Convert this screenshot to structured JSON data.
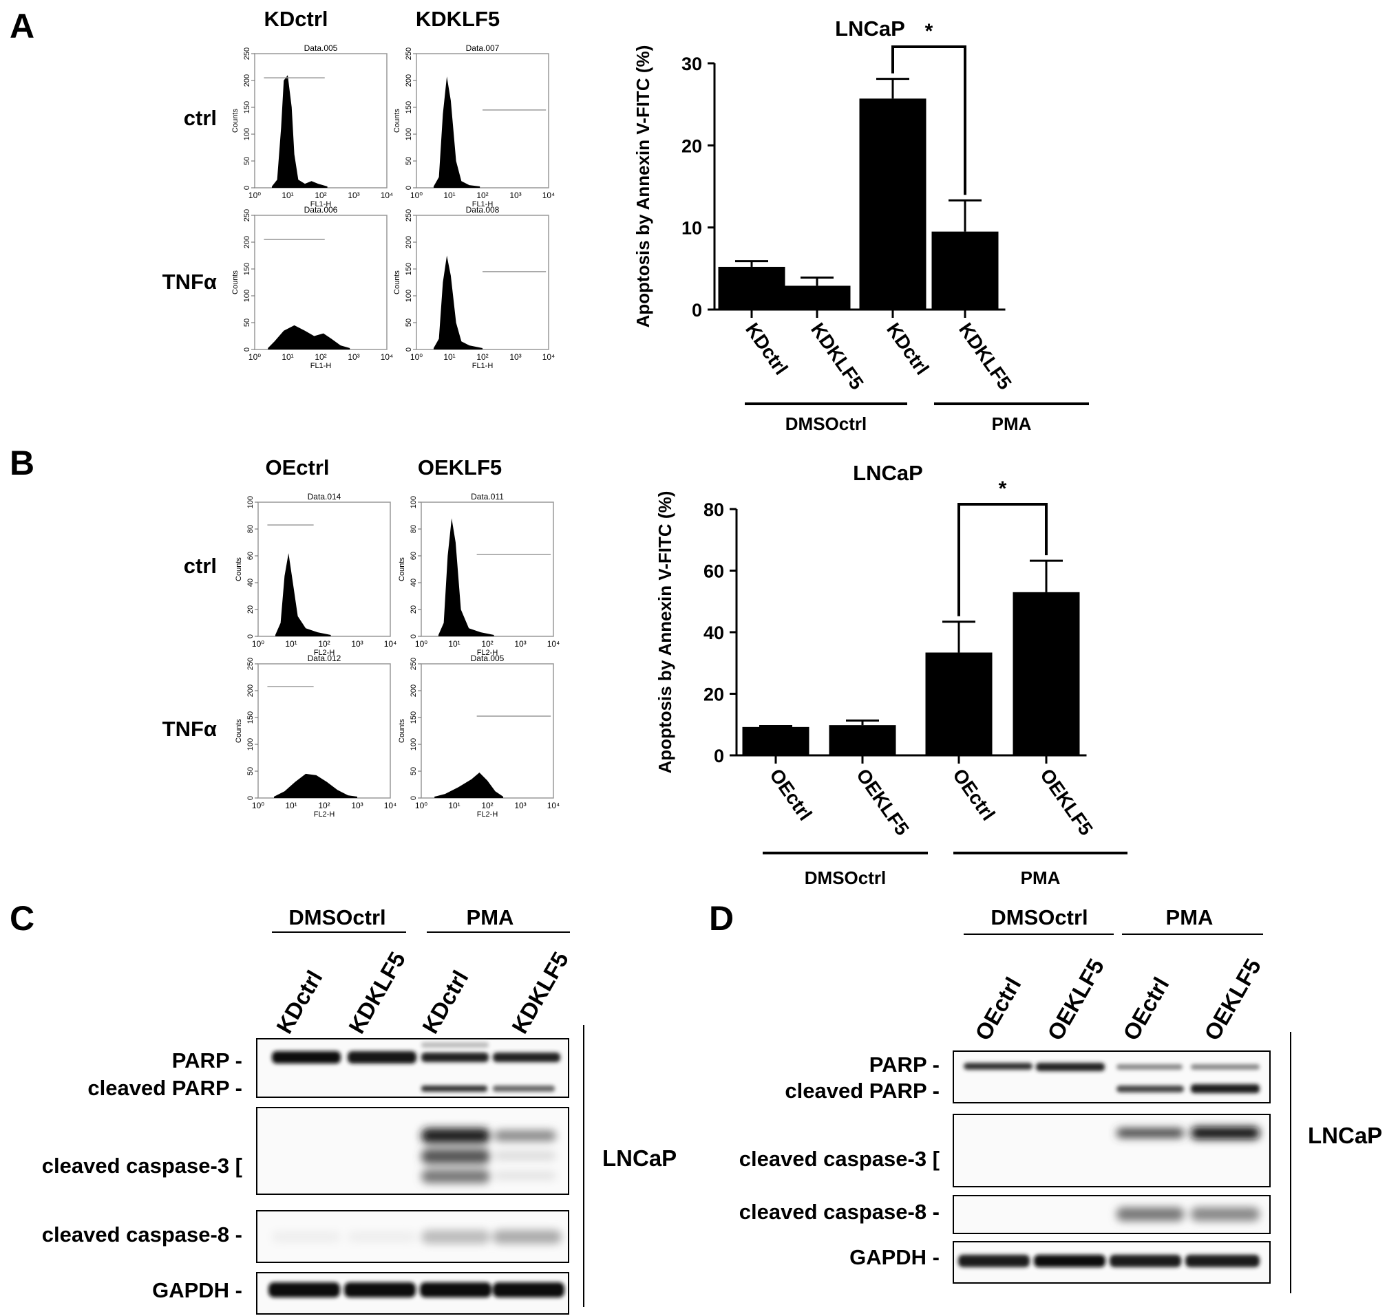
{
  "panel_a": {
    "letter": "A",
    "col_headers": [
      "KDctrl",
      "KDKLF5"
    ],
    "row_labels": [
      "ctrl",
      "TNFα"
    ],
    "histograms": [
      {
        "title": "Data.005",
        "xlabel": "FL1-H",
        "ylabel": "Counts",
        "yticks": [
          "0",
          "50",
          "100",
          "150",
          "200",
          "250"
        ],
        "xticks": [
          "10⁰",
          "10¹",
          "10²",
          "10³",
          "10⁴"
        ]
      },
      {
        "title": "Data.007",
        "xlabel": "FL1-H",
        "ylabel": "Counts",
        "yticks": [
          "0",
          "50",
          "100",
          "150",
          "200",
          "250"
        ],
        "xticks": [
          "10⁰",
          "10¹",
          "10²",
          "10³",
          "10⁴"
        ]
      },
      {
        "title": "Data.006",
        "xlabel": "FL1-H",
        "ylabel": "Counts",
        "yticks": [
          "0",
          "50",
          "100",
          "150",
          "200",
          "250"
        ],
        "xticks": [
          "10⁰",
          "10¹",
          "10²",
          "10³",
          "10⁴"
        ]
      },
      {
        "title": "Data.008",
        "xlabel": "FL1-H",
        "ylabel": "Counts",
        "yticks": [
          "0",
          "50",
          "100",
          "150",
          "200",
          "250"
        ],
        "xticks": [
          "10⁰",
          "10¹",
          "10²",
          "10³",
          "10⁴"
        ]
      }
    ]
  },
  "panel_b": {
    "letter": "B",
    "col_headers": [
      "OEctrl",
      "OEKLF5"
    ],
    "row_labels": [
      "ctrl",
      "TNFα"
    ],
    "histograms": [
      {
        "title": "Data.014",
        "xlabel": "FL2-H",
        "ylabel": "Counts",
        "yticks": [
          "0",
          "20",
          "40",
          "60",
          "80",
          "100"
        ],
        "xticks": [
          "10⁰",
          "10¹",
          "10²",
          "10³",
          "10⁴"
        ]
      },
      {
        "title": "Data.011",
        "xlabel": "FL2-H",
        "ylabel": "Counts",
        "yticks": [
          "0",
          "20",
          "40",
          "60",
          "80",
          "100"
        ],
        "xticks": [
          "10⁰",
          "10¹",
          "10²",
          "10³",
          "10⁴"
        ]
      },
      {
        "title": "Data.012",
        "xlabel": "FL2-H",
        "ylabel": "Counts",
        "yticks": [
          "0",
          "50",
          "100",
          "150",
          "200",
          "250"
        ],
        "xticks": [
          "10⁰",
          "10¹",
          "10²",
          "10³",
          "10⁴"
        ]
      },
      {
        "title": "Data.005",
        "xlabel": "FL2-H",
        "ylabel": "Counts",
        "yticks": [
          "0",
          "50",
          "100",
          "150",
          "200",
          "250"
        ],
        "xticks": [
          "10⁰",
          "10¹",
          "10²",
          "10³",
          "10⁴"
        ]
      }
    ]
  },
  "chart_data": [
    {
      "type": "bar",
      "title": "LNCaP",
      "ylabel": "Apoptosis by Annexin V-FITC (%)",
      "categories": [
        "KDctrl",
        "KDKLF5",
        "KDctrl",
        "KDKLF5"
      ],
      "values": [
        5.2,
        2.9,
        25.7,
        9.5
      ],
      "errors": [
        0.7,
        1.0,
        2.4,
        3.8
      ],
      "ylim": [
        0,
        30
      ],
      "yticks": [
        0,
        10,
        20,
        30
      ],
      "groups": [
        {
          "label": "DMSOctrl"
        },
        {
          "label": "PMA"
        }
      ],
      "significance": "*"
    },
    {
      "type": "bar",
      "title": "LNCaP",
      "ylabel": "Apoptosis by Annexin V-FITC (%)",
      "categories": [
        "OEctrl",
        "OEKLF5",
        "OEctrl",
        "OEKLF5"
      ],
      "values": [
        9.2,
        9.8,
        33.4,
        53.0
      ],
      "errors": [
        0.3,
        1.5,
        10.0,
        10.2
      ],
      "ylim": [
        0,
        80
      ],
      "yticks": [
        0,
        20,
        40,
        60,
        80
      ],
      "groups": [
        {
          "label": "DMSOctrl"
        },
        {
          "label": "PMA"
        }
      ],
      "significance": "*"
    }
  ],
  "panel_c": {
    "letter": "C",
    "groups": [
      "DMSOctrl",
      "PMA"
    ],
    "lanes": [
      "KDctrl",
      "KDKLF5",
      "KDctrl",
      "KDKLF5"
    ],
    "bands": [
      "PARP -",
      "cleaved PARP -",
      "cleaved caspase-3 [",
      "cleaved caspase-8 -",
      "GAPDH -"
    ],
    "cell_line": "LNCaP"
  },
  "panel_d": {
    "letter": "D",
    "groups": [
      "DMSOctrl",
      "PMA"
    ],
    "lanes": [
      "OEctrl",
      "OEKLF5",
      "OEctrl",
      "OEKLF5"
    ],
    "bands": [
      "PARP -",
      "cleaved PARP -",
      "cleaved caspase-3 [",
      "cleaved caspase-8 -",
      "GAPDH -"
    ],
    "cell_line": "LNCaP"
  }
}
